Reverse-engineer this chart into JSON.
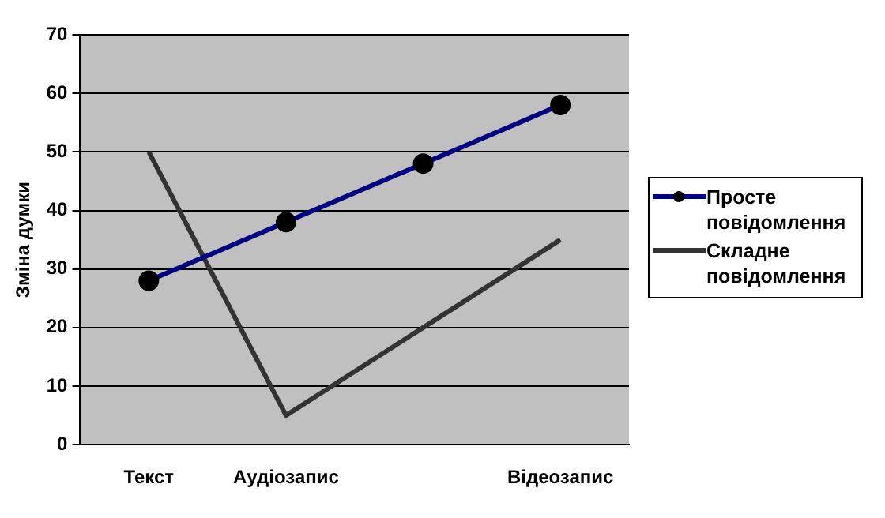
{
  "chart_data": {
    "type": "line",
    "ylabel": "Зміна думки",
    "categories": [
      "Текст",
      "Аудіозапис",
      null,
      "Відеозапис"
    ],
    "series": [
      {
        "name": "Просте повідомлення",
        "color": "#000080",
        "marker": "circle",
        "values": [
          28,
          38,
          48,
          58
        ]
      },
      {
        "name": "Складне повідомлення",
        "color": "#333333",
        "marker": "none",
        "values": [
          50,
          5,
          20,
          35
        ]
      }
    ],
    "ylim": [
      0,
      70
    ],
    "yticks": [
      0,
      10,
      20,
      30,
      40,
      50,
      60,
      70
    ],
    "grid": "y",
    "legend": "right"
  }
}
